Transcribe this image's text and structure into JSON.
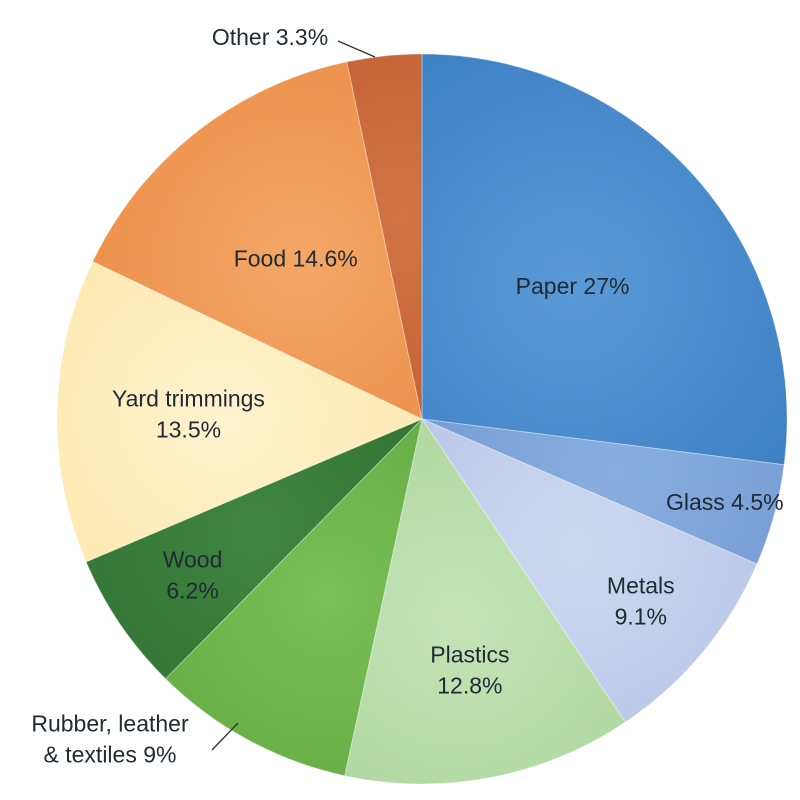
{
  "chart_data": {
    "type": "pie",
    "start_angle_deg": 0,
    "direction": "clockwise",
    "slices": [
      {
        "name": "Paper",
        "value": 27,
        "label_lines": [
          "Paper 27%"
        ],
        "color": "#3d80c4",
        "color_light": "#5a9ad6",
        "label_color": "#1f2a33"
      },
      {
        "name": "Glass",
        "value": 4.5,
        "label_lines": [
          "Glass 4.5%"
        ],
        "color": "#6f97d2",
        "color_light": "#8aaedf",
        "label_color": "#1f2a33"
      },
      {
        "name": "Metals",
        "value": 9.1,
        "label_lines": [
          "Metals",
          "9.1%"
        ],
        "color": "#b3c1e6",
        "color_light": "#cfd9f1",
        "label_color": "#1f2a33"
      },
      {
        "name": "Plastics",
        "value": 12.8,
        "label_lines": [
          "Plastics",
          "12.8%"
        ],
        "color": "#a9d59a",
        "color_light": "#c4e4b8",
        "label_color": "#1f2a33"
      },
      {
        "name": "Rubber, leather & textiles",
        "value": 9,
        "label_lines": [
          "Rubber, leather",
          "& textiles 9%"
        ],
        "color": "#5ea73d",
        "color_light": "#7bc059",
        "label_color": "#1f2a33",
        "outside": true
      },
      {
        "name": "Wood",
        "value": 6.2,
        "label_lines": [
          "Wood",
          "6.2%"
        ],
        "color": "#2f6f31",
        "color_light": "#3f8540",
        "label_color": "#1f2a33"
      },
      {
        "name": "Yard trimmings",
        "value": 13.5,
        "label_lines": [
          "Yard trimmings",
          "13.5%"
        ],
        "color": "#fde6a6",
        "color_light": "#fff3cf",
        "label_color": "#1f2a33"
      },
      {
        "name": "Food",
        "value": 14.6,
        "label_lines": [
          "Food 14.6%"
        ],
        "color": "#eb8b45",
        "color_light": "#f4a766",
        "label_color": "#1f2a33"
      },
      {
        "name": "Other",
        "value": 3.3,
        "label_lines": [
          "Other 3.3%"
        ],
        "color": "#bf5c2f",
        "color_light": "#d27445",
        "label_color": "#1f2a33",
        "outside": true
      }
    ],
    "title": "",
    "legend": "none"
  }
}
